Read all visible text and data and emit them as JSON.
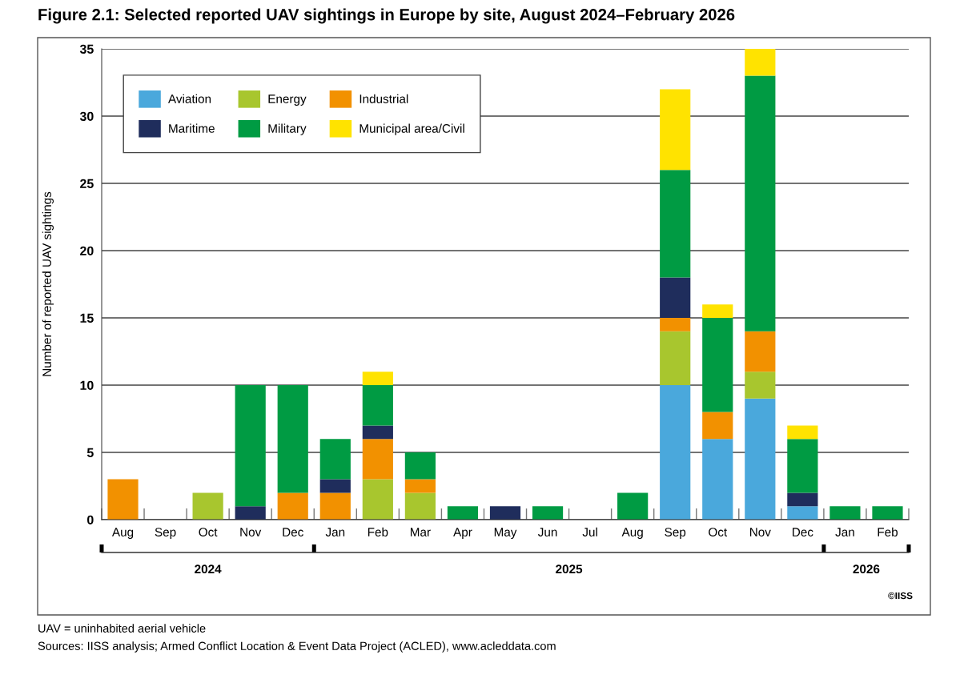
{
  "chart_data": {
    "type": "bar",
    "stacked": true,
    "title": "Figure 2.1: Selected reported UAV sightings in Europe by site, August 2024–February 2026",
    "ylabel": "Number of reported UAV sightings",
    "categories": [
      "Aug",
      "Sep",
      "Oct",
      "Nov",
      "Dec",
      "Jan",
      "Feb",
      "Mar",
      "Apr",
      "May",
      "Jun",
      "Jul",
      "Aug",
      "Sep",
      "Oct",
      "Nov",
      "Dec",
      "Jan",
      "Feb"
    ],
    "series": [
      {
        "name": "Aviation",
        "color": "#4aa8dc",
        "values": [
          0,
          0,
          0,
          0,
          0,
          0,
          0,
          0,
          0,
          0,
          0,
          0,
          0,
          10,
          6,
          9,
          1,
          0,
          0
        ]
      },
      {
        "name": "Energy",
        "color": "#a8c62e",
        "values": [
          0,
          0,
          2,
          0,
          0,
          0,
          3,
          2,
          0,
          0,
          0,
          0,
          0,
          4,
          0,
          2,
          0,
          0,
          0
        ]
      },
      {
        "name": "Industrial",
        "color": "#f29100",
        "values": [
          3,
          0,
          0,
          0,
          2,
          2,
          3,
          1,
          0,
          0,
          0,
          0,
          0,
          1,
          2,
          3,
          0,
          0,
          0
        ]
      },
      {
        "name": "Maritime",
        "color": "#1f2d5c",
        "values": [
          0,
          0,
          0,
          1,
          0,
          1,
          1,
          0,
          0,
          1,
          0,
          0,
          0,
          3,
          0,
          0,
          1,
          0,
          0
        ]
      },
      {
        "name": "Military",
        "color": "#009b43",
        "values": [
          0,
          0,
          0,
          9,
          8,
          3,
          3,
          2,
          1,
          0,
          1,
          0,
          2,
          8,
          7,
          19,
          4,
          1,
          1
        ]
      },
      {
        "name": "Municipal area/Civil",
        "color": "#ffe300",
        "values": [
          0,
          0,
          0,
          0,
          0,
          0,
          1,
          0,
          0,
          0,
          0,
          0,
          0,
          6,
          1,
          2,
          1,
          0,
          0
        ]
      }
    ],
    "ylim": [
      0,
      35
    ],
    "yticks": [
      0,
      5,
      10,
      15,
      20,
      25,
      30,
      35
    ],
    "grid": "y",
    "legend": "top left",
    "annotations": [
      "2024",
      "2025",
      "2026",
      "©IISS",
      "UAV = uninhabited aerial vehicle",
      "Sources: IISS analysis; Armed Conflict Location & Event Data Project (ACLED), www.acleddata.com"
    ]
  }
}
